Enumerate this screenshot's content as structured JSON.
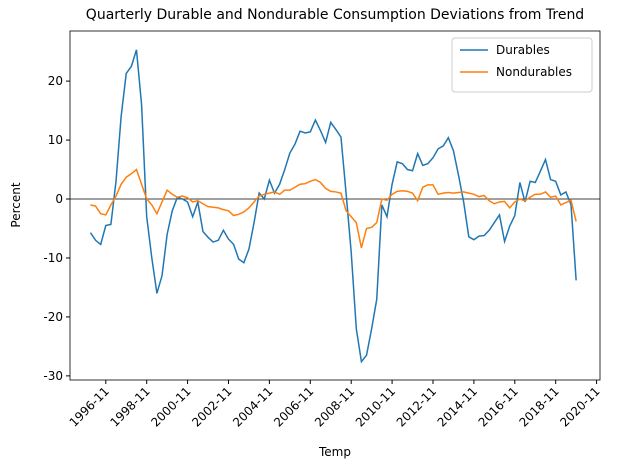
{
  "chart_data": {
    "type": "line",
    "title": "Quarterly Durable and Nondurable Consumption Deviations from Trend",
    "xlabel": "Temp",
    "ylabel": "Percent",
    "x_start": "1996-02",
    "x_step_months": 3,
    "xlim": [
      "1995-02",
      "2021-01"
    ],
    "xticks": [
      "1996-11",
      "1998-11",
      "2000-11",
      "2002-11",
      "2004-11",
      "2006-11",
      "2008-11",
      "2010-11",
      "2012-11",
      "2014-11",
      "2016-11",
      "2018-11",
      "2020-11"
    ],
    "ylim": [
      -30.7,
      28.5
    ],
    "yticks": [
      -30,
      -20,
      -10,
      0,
      10,
      20
    ],
    "hline": 0,
    "legend": "upper right",
    "series": [
      {
        "name": "Durables",
        "color": "#1f77b4",
        "values": [
          -5.7,
          -7,
          -7.7,
          -4.5,
          -4.3,
          3,
          14,
          21.3,
          22.5,
          25.3,
          16,
          -3,
          -10,
          -16,
          -13,
          -6,
          -2,
          0.3,
          0,
          -0.5,
          -3,
          -0.5,
          -5.5,
          -6.5,
          -7.3,
          -7,
          -5.3,
          -6.8,
          -7.7,
          -10.2,
          -10.8,
          -8.5,
          -4,
          1,
          0,
          3.2,
          1,
          2.5,
          5,
          7.8,
          9.3,
          11.5,
          11.2,
          11.4,
          13.4,
          11.6,
          9.6,
          13,
          11.8,
          10.5,
          1,
          -9,
          -22,
          -27.6,
          -26.5,
          -22,
          -17,
          -1,
          -3,
          2.5,
          6.3,
          6,
          5,
          4.8,
          7.7,
          5.7,
          6,
          7,
          8.5,
          9,
          10.4,
          8.2,
          4,
          -0.5,
          -6.4,
          -6.9,
          -6.3,
          -6.2,
          -5.3,
          -4,
          -2.7,
          -7.2,
          -4.6,
          -2.8,
          2.8,
          -0.5,
          3,
          2.8,
          4.7,
          6.7,
          3.3,
          3,
          0.7,
          1.2,
          -1,
          -13.8
        ]
      },
      {
        "name": "Nondurables",
        "color": "#ff7f0e",
        "values": [
          -1,
          -1.2,
          -2.5,
          -2.7,
          -1,
          0.5,
          2.5,
          3.7,
          4.3,
          5,
          2.5,
          0,
          -1,
          -2.5,
          -0.5,
          1.5,
          0.8,
          0.3,
          0.5,
          0.2,
          -0.5,
          -0.3,
          -0.8,
          -1.3,
          -1.4,
          -1.5,
          -1.8,
          -2,
          -2.8,
          -2.6,
          -2.2,
          -1.5,
          -0.5,
          0.5,
          0.8,
          1,
          1.2,
          0.8,
          1.5,
          1.5,
          2,
          2.5,
          2.6,
          3,
          3.3,
          2.8,
          1.8,
          1.3,
          1.2,
          1,
          -2,
          -3,
          -4,
          -8.3,
          -5,
          -4.8,
          -4,
          0,
          -0.2,
          0.8,
          1.3,
          1.4,
          1.3,
          1,
          -0.3,
          2,
          2.4,
          2.4,
          0.8,
          1,
          1.1,
          1,
          1.1,
          1.2,
          1,
          0.8,
          0.4,
          0.6,
          -0.3,
          -0.8,
          -0.5,
          -0.4,
          -1.5,
          -0.5,
          0,
          -0.3,
          0.3,
          0.8,
          0.8,
          1.2,
          0.3,
          0.5,
          -1,
          -0.6,
          -0.2,
          -3.8
        ]
      }
    ]
  }
}
